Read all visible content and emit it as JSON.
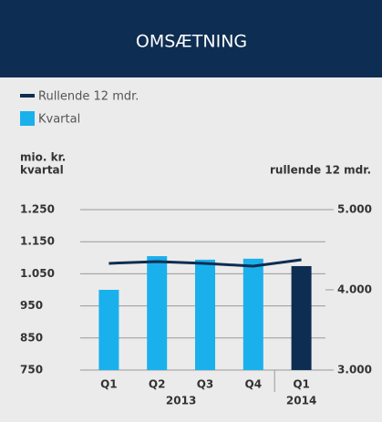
{
  "chart_data": {
    "type": "bar_line",
    "title": "OMSÆTNING",
    "ylabel": [
      "mio. kr.",
      "kvartal"
    ],
    "y2label": "rullende 12 mdr.",
    "categories": [
      "Q1",
      "Q2",
      "Q3",
      "Q4",
      "Q1"
    ],
    "groups": [
      {
        "label": "2013",
        "categories": 4
      },
      {
        "label": "2014",
        "categories": 1
      }
    ],
    "series": [
      {
        "name": "Rullende 12 mdr.",
        "type": "line",
        "axis": "y2",
        "color": "#0d2d52",
        "values": [
          4330,
          4352,
          4330,
          4295,
          4375
        ]
      },
      {
        "name": "Kvartal",
        "type": "bar",
        "color": "#1ab0ec",
        "bar_colors": [
          "#1ab0ec",
          "#1ab0ec",
          "#1ab0ec",
          "#1ab0ec",
          "#0d2d52"
        ],
        "values": [
          1000,
          1105,
          1094,
          1097,
          1074
        ]
      }
    ],
    "ylim": [
      750,
      1250
    ],
    "yticks": [
      {
        "value": 1250,
        "label": "1.250"
      },
      {
        "value": 1150,
        "label": "1.150"
      },
      {
        "value": 1050,
        "label": "1.050"
      },
      950,
      850,
      750
    ],
    "y2lim": [
      3000,
      5000
    ],
    "y2ticks": [
      {
        "value": 5000,
        "label": "5.000"
      },
      {
        "value": 4000,
        "label": "4.000"
      },
      {
        "value": 3000,
        "label": "3.000"
      }
    ],
    "grid": true
  }
}
